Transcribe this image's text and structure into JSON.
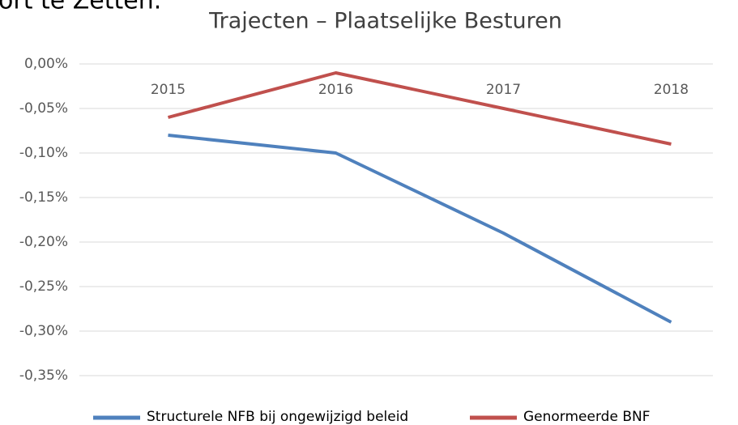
{
  "header_fragment": "ort te Zetten.",
  "chart_data": {
    "type": "line",
    "title": "Trajecten – Plaatselijke Besturen",
    "categories": [
      "2015",
      "2016",
      "2017",
      "2018"
    ],
    "series": [
      {
        "name": "Structurele NFB bij ongewijzigd beleid",
        "color": "#4f81bd",
        "values": [
          -0.08,
          -0.1,
          -0.19,
          -0.29
        ]
      },
      {
        "name": "Genormeerde BNF",
        "color": "#c0504d",
        "values": [
          -0.06,
          -0.01,
          -0.05,
          -0.09
        ]
      }
    ],
    "ylim": [
      -0.35,
      0
    ],
    "yticks": [
      {
        "value": 0,
        "label": "0,00%"
      },
      {
        "value": -0.05,
        "label": "-0,05%"
      },
      {
        "value": -0.1,
        "label": "-0,10%"
      },
      {
        "value": -0.15,
        "label": "-0,15%"
      },
      {
        "value": -0.2,
        "label": "-0,20%"
      },
      {
        "value": -0.25,
        "label": "-0,25%"
      },
      {
        "value": -0.3,
        "label": "-0,30%"
      },
      {
        "value": -0.35,
        "label": "-0,35%"
      }
    ],
    "grid": true,
    "legend": "bottom"
  }
}
